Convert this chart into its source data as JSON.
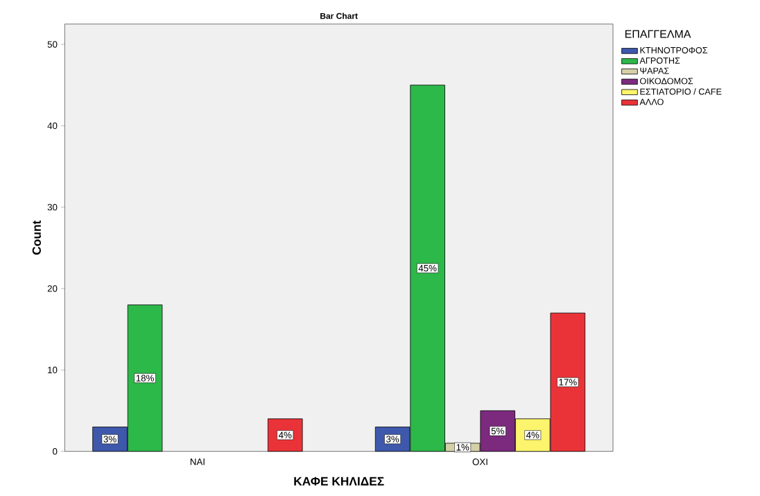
{
  "chart_data": {
    "type": "bar",
    "title": "Bar Chart",
    "xlabel": "ΚΑΦΕ ΚΗΛΙΔΕΣ",
    "ylabel": "Count",
    "legend_title": "ΕΠΑΓΓΕΛΜΑ",
    "categories": [
      "ΝΑΙ",
      "ΟΧΙ"
    ],
    "series": [
      {
        "name": "ΚΤΗΝΟΤΡΟΦΟΣ",
        "color": "#3e58ac",
        "values": [
          3,
          3
        ],
        "value_labels": [
          "3%",
          "3%"
        ]
      },
      {
        "name": "ΑΓΡΟΤΗΣ",
        "color": "#2db84a",
        "values": [
          18,
          45
        ],
        "value_labels": [
          "18%",
          "45%"
        ]
      },
      {
        "name": "ΨΑΡΑΣ",
        "color": "#d6d0a8",
        "values": [
          null,
          1
        ],
        "value_labels": [
          null,
          "1%"
        ]
      },
      {
        "name": "ΟΙΚΟΔΟΜΟΣ",
        "color": "#7c2a7e",
        "values": [
          null,
          5
        ],
        "value_labels": [
          null,
          "5%"
        ]
      },
      {
        "name": "ΕΣΤΙΑΤΟΡΙΟ / CAFE",
        "color": "#fbf46c",
        "values": [
          null,
          4
        ],
        "value_labels": [
          null,
          "4%"
        ]
      },
      {
        "name": "ΑΛΛΟ",
        "color": "#ea3338",
        "values": [
          4,
          17
        ],
        "value_labels": [
          "4%",
          "17%"
        ]
      }
    ],
    "ylim": [
      0,
      52.5
    ],
    "yticks": [
      0,
      10,
      20,
      30,
      40,
      50
    ],
    "grid": false,
    "legend": "top right"
  }
}
